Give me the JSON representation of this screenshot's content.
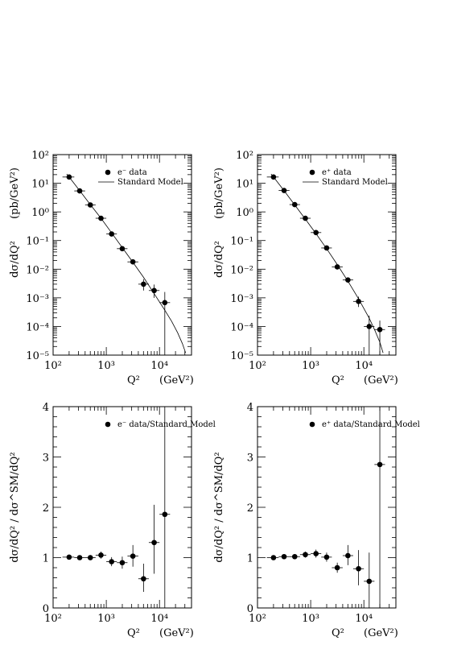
{
  "chart_data": [
    {
      "type": "scatter",
      "panel": "top-left",
      "xscale": "log",
      "yscale": "log",
      "xlim": [
        100,
        40000
      ],
      "ylim": [
        1e-05,
        100
      ],
      "xlabel": "Q²",
      "xunit": "(GeV²)",
      "ylabel": "dσ/dQ²",
      "yunit": "(pb/GeV²)",
      "x_ticks": [
        {
          "v": 100,
          "label": "10²"
        },
        {
          "v": 1000,
          "label": "10³"
        },
        {
          "v": 10000,
          "label": "10⁴"
        }
      ],
      "y_ticks": [
        {
          "v": 1e-05,
          "label": "10⁻⁵"
        },
        {
          "v": 0.0001,
          "label": "10⁻⁴"
        },
        {
          "v": 0.001,
          "label": "10⁻³"
        },
        {
          "v": 0.01,
          "label": "10⁻²"
        },
        {
          "v": 0.1,
          "label": "10⁻¹"
        },
        {
          "v": 1,
          "label": "10⁰"
        },
        {
          "v": 10,
          "label": "10¹"
        },
        {
          "v": 100,
          "label": "10²"
        }
      ],
      "legend": {
        "position": "top-right",
        "entries": [
          {
            "marker": "dot",
            "label": "e⁻ data"
          },
          {
            "marker": "line",
            "label": "Standard Model"
          }
        ]
      },
      "series": [
        {
          "name": "e⁻ data",
          "kind": "points",
          "points": [
            {
              "x": 200,
              "y": 16.5,
              "ylo": 14.5,
              "yhi": 18.5,
              "xlo": 150,
              "xhi": 250
            },
            {
              "x": 316,
              "y": 5.4,
              "ylo": 4.9,
              "yhi": 5.9,
              "xlo": 250,
              "xhi": 400
            },
            {
              "x": 501,
              "y": 1.75,
              "ylo": 1.6,
              "yhi": 1.9,
              "xlo": 400,
              "xhi": 630
            },
            {
              "x": 794,
              "y": 0.6,
              "ylo": 0.55,
              "yhi": 0.66,
              "xlo": 630,
              "xhi": 1000
            },
            {
              "x": 1258,
              "y": 0.17,
              "ylo": 0.155,
              "yhi": 0.185,
              "xlo": 1000,
              "xhi": 1580
            },
            {
              "x": 1995,
              "y": 0.052,
              "ylo": 0.046,
              "yhi": 0.058,
              "xlo": 1580,
              "xhi": 2500
            },
            {
              "x": 3162,
              "y": 0.018,
              "ylo": 0.015,
              "yhi": 0.021,
              "xlo": 2500,
              "xhi": 4000
            },
            {
              "x": 5012,
              "y": 0.003,
              "ylo": 0.0018,
              "yhi": 0.0045,
              "xlo": 4000,
              "xhi": 6300
            },
            {
              "x": 7943,
              "y": 0.0018,
              "ylo": 0.001,
              "yhi": 0.0029,
              "xlo": 6300,
              "xhi": 10000
            },
            {
              "x": 12589,
              "y": 0.00068,
              "ylo": 1e-05,
              "yhi": 0.0016,
              "xlo": 10000,
              "xhi": 15800
            }
          ]
        },
        {
          "name": "Standard Model",
          "kind": "line",
          "points": [
            {
              "x": 180,
              "y": 21
            },
            {
              "x": 200,
              "y": 16.5
            },
            {
              "x": 316,
              "y": 5.5
            },
            {
              "x": 501,
              "y": 1.8
            },
            {
              "x": 794,
              "y": 0.6
            },
            {
              "x": 1258,
              "y": 0.185
            },
            {
              "x": 1995,
              "y": 0.057
            },
            {
              "x": 3162,
              "y": 0.0175
            },
            {
              "x": 5012,
              "y": 0.0052
            },
            {
              "x": 7943,
              "y": 0.0014
            },
            {
              "x": 12589,
              "y": 0.00037
            },
            {
              "x": 17000,
              "y": 0.00015
            },
            {
              "x": 22000,
              "y": 6e-05
            },
            {
              "x": 27000,
              "y": 2.5e-05
            },
            {
              "x": 31000,
              "y": 1.2e-05
            }
          ]
        }
      ]
    },
    {
      "type": "scatter",
      "panel": "top-right",
      "xscale": "log",
      "yscale": "log",
      "xlim": [
        100,
        40000
      ],
      "ylim": [
        1e-05,
        100
      ],
      "xlabel": "Q²",
      "xunit": "(GeV²)",
      "ylabel": "dσ/dQ²",
      "yunit": "(pb/GeV²)",
      "x_ticks": [
        {
          "v": 100,
          "label": "10²"
        },
        {
          "v": 1000,
          "label": "10³"
        },
        {
          "v": 10000,
          "label": "10⁴"
        }
      ],
      "y_ticks": [
        {
          "v": 1e-05,
          "label": "10⁻⁵"
        },
        {
          "v": 0.0001,
          "label": "10⁻⁴"
        },
        {
          "v": 0.001,
          "label": "10⁻³"
        },
        {
          "v": 0.01,
          "label": "10⁻²"
        },
        {
          "v": 0.1,
          "label": "10⁻¹"
        },
        {
          "v": 1,
          "label": "10⁰"
        },
        {
          "v": 10,
          "label": "10¹"
        },
        {
          "v": 100,
          "label": "10²"
        }
      ],
      "legend": {
        "position": "top-right",
        "entries": [
          {
            "marker": "dot",
            "label": "e⁺ data"
          },
          {
            "marker": "line",
            "label": "Standard Model"
          }
        ]
      },
      "series": [
        {
          "name": "e⁺ data",
          "kind": "points",
          "points": [
            {
              "x": 200,
              "y": 16.5,
              "ylo": 14.5,
              "yhi": 18.5,
              "xlo": 150,
              "xhi": 250
            },
            {
              "x": 316,
              "y": 5.6,
              "ylo": 5.1,
              "yhi": 6.1,
              "xlo": 250,
              "xhi": 400
            },
            {
              "x": 501,
              "y": 1.8,
              "ylo": 1.65,
              "yhi": 1.95,
              "xlo": 400,
              "xhi": 630
            },
            {
              "x": 794,
              "y": 0.6,
              "ylo": 0.55,
              "yhi": 0.65,
              "xlo": 630,
              "xhi": 1000
            },
            {
              "x": 1258,
              "y": 0.19,
              "ylo": 0.175,
              "yhi": 0.205,
              "xlo": 1000,
              "xhi": 1580
            },
            {
              "x": 1995,
              "y": 0.055,
              "ylo": 0.05,
              "yhi": 0.06,
              "xlo": 1580,
              "xhi": 2500
            },
            {
              "x": 3162,
              "y": 0.012,
              "ylo": 0.0105,
              "yhi": 0.0135,
              "xlo": 2500,
              "xhi": 4000
            },
            {
              "x": 5012,
              "y": 0.0042,
              "ylo": 0.0035,
              "yhi": 0.0049,
              "xlo": 4000,
              "xhi": 6300
            },
            {
              "x": 7943,
              "y": 0.00075,
              "ylo": 0.00048,
              "yhi": 0.0011,
              "xlo": 6300,
              "xhi": 10000
            },
            {
              "x": 12589,
              "y": 0.0001,
              "ylo": 1e-05,
              "yhi": 0.00024,
              "xlo": 10000,
              "xhi": 15800
            },
            {
              "x": 19953,
              "y": 7.8e-05,
              "ylo": 1e-05,
              "yhi": 0.00016,
              "xlo": 15800,
              "xhi": 25000
            }
          ]
        },
        {
          "name": "Standard Model",
          "kind": "line",
          "points": [
            {
              "x": 180,
              "y": 21
            },
            {
              "x": 200,
              "y": 16.5
            },
            {
              "x": 316,
              "y": 5.5
            },
            {
              "x": 501,
              "y": 1.75
            },
            {
              "x": 794,
              "y": 0.56
            },
            {
              "x": 1258,
              "y": 0.175
            },
            {
              "x": 1995,
              "y": 0.052
            },
            {
              "x": 3162,
              "y": 0.0145
            },
            {
              "x": 5012,
              "y": 0.0038
            },
            {
              "x": 7943,
              "y": 0.00092
            },
            {
              "x": 12589,
              "y": 0.000195
            },
            {
              "x": 16000,
              "y": 7.5e-05
            },
            {
              "x": 20000,
              "y": 2.8e-05
            },
            {
              "x": 23000,
              "y": 1.2e-05
            }
          ]
        }
      ]
    },
    {
      "type": "scatter",
      "panel": "bottom-left",
      "xscale": "log",
      "yscale": "linear",
      "xlim": [
        100,
        40000
      ],
      "ylim": [
        0,
        4
      ],
      "xlabel": "Q²",
      "xunit": "(GeV²)",
      "ylabel": "dσ/dQ² / dσ^SM/dQ²",
      "x_ticks": [
        {
          "v": 100,
          "label": "10²"
        },
        {
          "v": 1000,
          "label": "10³"
        },
        {
          "v": 10000,
          "label": "10⁴"
        }
      ],
      "y_ticks": [
        {
          "v": 0,
          "label": "0"
        },
        {
          "v": 1,
          "label": "1"
        },
        {
          "v": 2,
          "label": "2"
        },
        {
          "v": 3,
          "label": "3"
        },
        {
          "v": 4,
          "label": "4"
        }
      ],
      "legend": {
        "position": "top-right",
        "entries": [
          {
            "marker": "dot",
            "label": "e⁻ data/Standard Model"
          }
        ]
      },
      "series": [
        {
          "name": "e⁻ data/Standard Model",
          "kind": "points",
          "points": [
            {
              "x": 200,
              "y": 1.01,
              "ylo": 0.96,
              "yhi": 1.06,
              "xlo": 150,
              "xhi": 250
            },
            {
              "x": 316,
              "y": 1.0,
              "ylo": 0.96,
              "yhi": 1.04,
              "xlo": 250,
              "xhi": 400
            },
            {
              "x": 501,
              "y": 1.0,
              "ylo": 0.95,
              "yhi": 1.05,
              "xlo": 400,
              "xhi": 630
            },
            {
              "x": 794,
              "y": 1.05,
              "ylo": 0.98,
              "yhi": 1.12,
              "xlo": 630,
              "xhi": 1000
            },
            {
              "x": 1258,
              "y": 0.92,
              "ylo": 0.83,
              "yhi": 1.01,
              "xlo": 1000,
              "xhi": 1580
            },
            {
              "x": 1995,
              "y": 0.9,
              "ylo": 0.78,
              "yhi": 1.02,
              "xlo": 1580,
              "xhi": 2500
            },
            {
              "x": 3162,
              "y": 1.03,
              "ylo": 0.82,
              "yhi": 1.25,
              "xlo": 2500,
              "xhi": 4000
            },
            {
              "x": 5012,
              "y": 0.58,
              "ylo": 0.32,
              "yhi": 0.88,
              "xlo": 4000,
              "xhi": 6300
            },
            {
              "x": 7943,
              "y": 1.3,
              "ylo": 0.68,
              "yhi": 2.05,
              "xlo": 6300,
              "xhi": 10000
            },
            {
              "x": 12589,
              "y": 1.86,
              "ylo": 0.0,
              "yhi": 4.0,
              "xlo": 10000,
              "xhi": 15800
            }
          ]
        }
      ]
    },
    {
      "type": "scatter",
      "panel": "bottom-right",
      "xscale": "log",
      "yscale": "linear",
      "xlim": [
        100,
        40000
      ],
      "ylim": [
        0,
        4
      ],
      "xlabel": "Q²",
      "xunit": "(GeV²)",
      "ylabel": "dσ/dQ² / dσ^SM/dQ²",
      "x_ticks": [
        {
          "v": 100,
          "label": "10²"
        },
        {
          "v": 1000,
          "label": "10³"
        },
        {
          "v": 10000,
          "label": "10⁴"
        }
      ],
      "y_ticks": [
        {
          "v": 0,
          "label": "0"
        },
        {
          "v": 1,
          "label": "1"
        },
        {
          "v": 2,
          "label": "2"
        },
        {
          "v": 3,
          "label": "3"
        },
        {
          "v": 4,
          "label": "4"
        }
      ],
      "legend": {
        "position": "top-right",
        "entries": [
          {
            "marker": "dot",
            "label": "e⁺ data/Standard Model"
          }
        ]
      },
      "series": [
        {
          "name": "e⁺ data/Standard Model",
          "kind": "points",
          "points": [
            {
              "x": 200,
              "y": 1.0,
              "ylo": 0.96,
              "yhi": 1.04,
              "xlo": 150,
              "xhi": 250
            },
            {
              "x": 316,
              "y": 1.02,
              "ylo": 0.98,
              "yhi": 1.06,
              "xlo": 250,
              "xhi": 400
            },
            {
              "x": 501,
              "y": 1.02,
              "ylo": 0.97,
              "yhi": 1.07,
              "xlo": 400,
              "xhi": 630
            },
            {
              "x": 794,
              "y": 1.06,
              "ylo": 1.0,
              "yhi": 1.12,
              "xlo": 630,
              "xhi": 1000
            },
            {
              "x": 1258,
              "y": 1.08,
              "ylo": 1.0,
              "yhi": 1.16,
              "xlo": 1000,
              "xhi": 1580
            },
            {
              "x": 1995,
              "y": 1.01,
              "ylo": 0.92,
              "yhi": 1.1,
              "xlo": 1580,
              "xhi": 2500
            },
            {
              "x": 3162,
              "y": 0.8,
              "ylo": 0.7,
              "yhi": 0.9,
              "xlo": 2500,
              "xhi": 4000
            },
            {
              "x": 5012,
              "y": 1.04,
              "ylo": 0.85,
              "yhi": 1.25,
              "xlo": 4000,
              "xhi": 6300
            },
            {
              "x": 7943,
              "y": 0.78,
              "ylo": 0.45,
              "yhi": 1.15,
              "xlo": 6300,
              "xhi": 10000
            },
            {
              "x": 12589,
              "y": 0.53,
              "ylo": 0.0,
              "yhi": 1.1,
              "xlo": 10000,
              "xhi": 15800
            },
            {
              "x": 19953,
              "y": 2.85,
              "ylo": 0.0,
              "yhi": 4.0,
              "xlo": 15800,
              "xhi": 25000
            }
          ]
        }
      ]
    }
  ]
}
